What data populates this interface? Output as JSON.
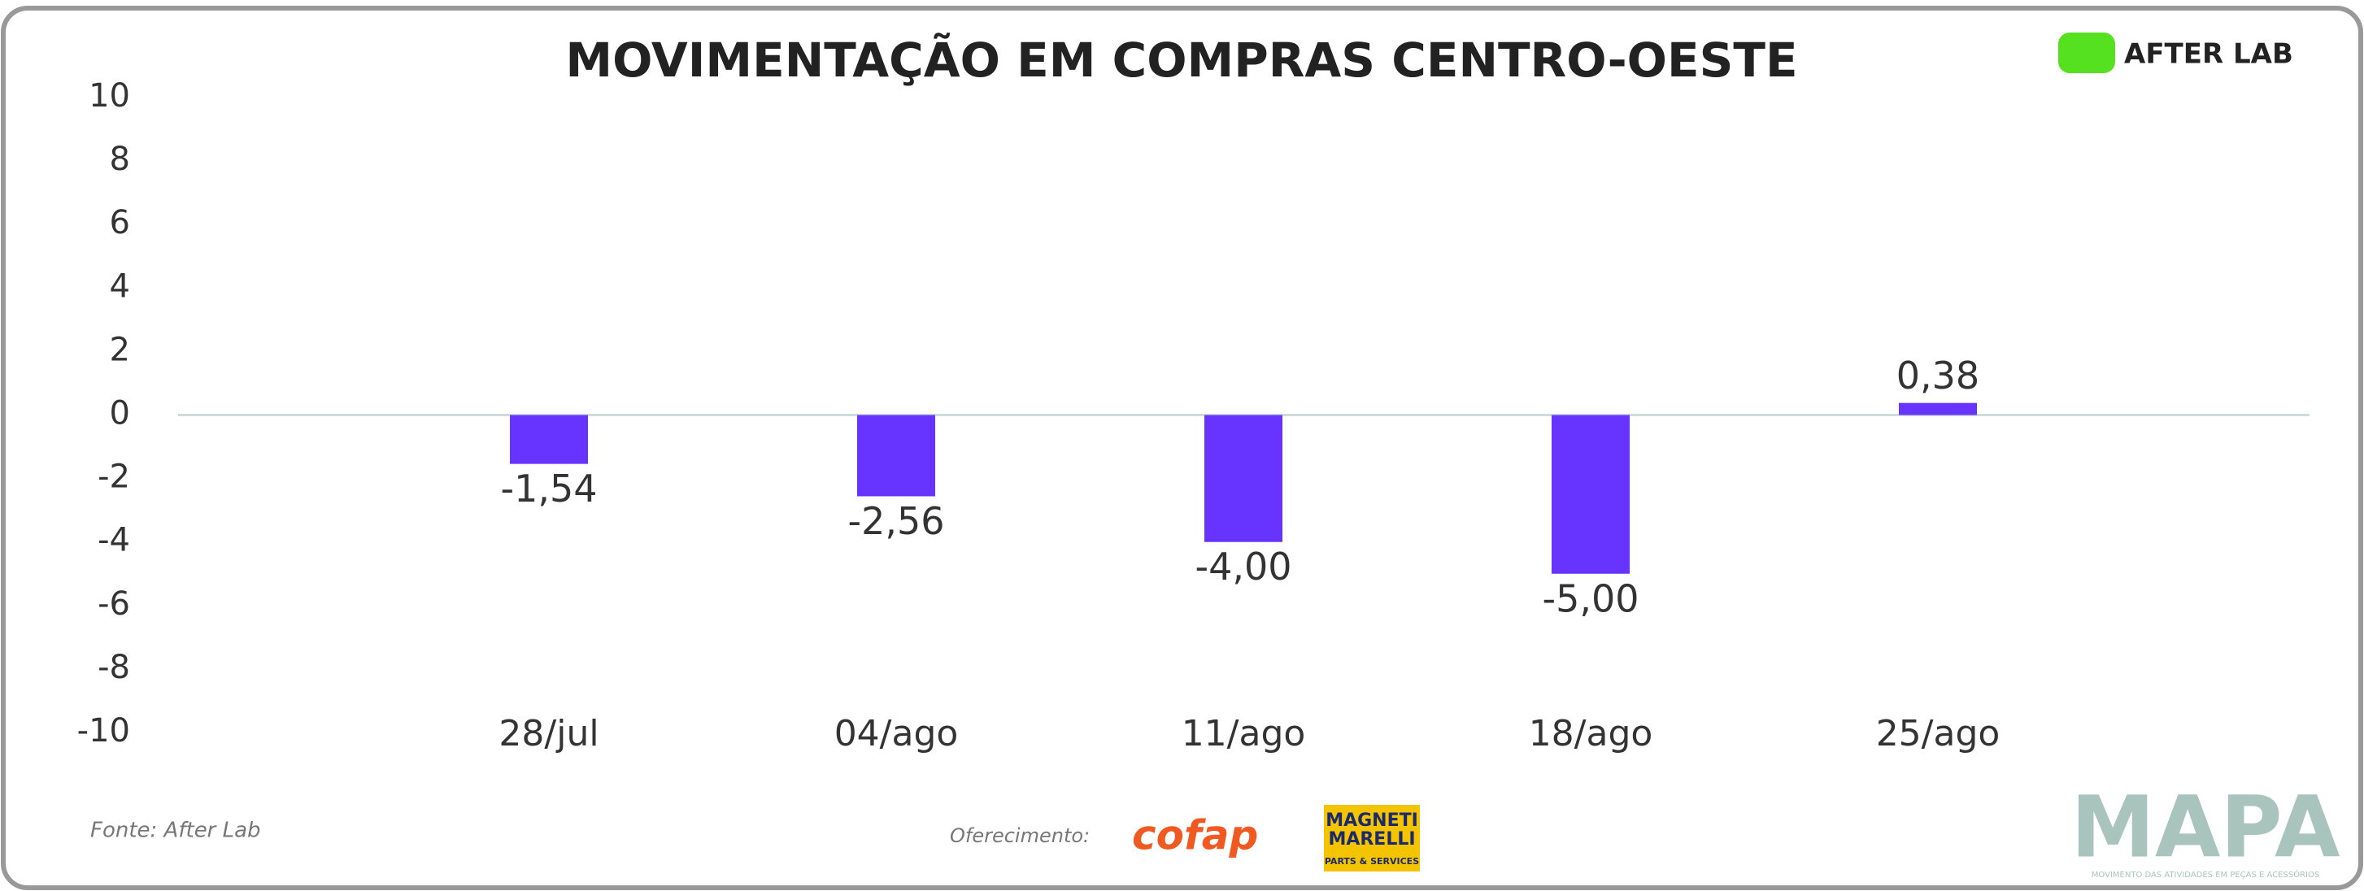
{
  "chart_data": {
    "type": "bar",
    "title": "MOVIMENTAÇÃO EM COMPRAS CENTRO-OESTE",
    "categories": [
      "28/jul",
      "04/ago",
      "11/ago",
      "18/ago",
      "25/ago"
    ],
    "values": [
      -1.54,
      -2.56,
      -4.0,
      -5.0,
      0.38
    ],
    "value_labels": [
      "-1,54",
      "-2,56",
      "-4,00",
      "-5,00",
      "0,38"
    ],
    "color": "#6633ff",
    "ylim": [
      -10,
      10
    ],
    "yticks": [
      10,
      8,
      6,
      4,
      2,
      0,
      -2,
      -4,
      -6,
      -8,
      -10
    ],
    "grid": false
  },
  "branding": {
    "logo": "AFTER LAB",
    "source": "Fonte: After Lab",
    "sponsor_label": "Oferecimento:",
    "sponsor_1": "cofap",
    "sponsor_2_line1": "MAGNETI",
    "sponsor_2_line2": "MARELLI",
    "sponsor_2_tagline": "PARTS & SERVICES",
    "brand": "MAPA",
    "brand_tagline": "MOVIMENTO DAS ATIVIDADES EM PEÇAS E ACESSÓRIOS"
  }
}
